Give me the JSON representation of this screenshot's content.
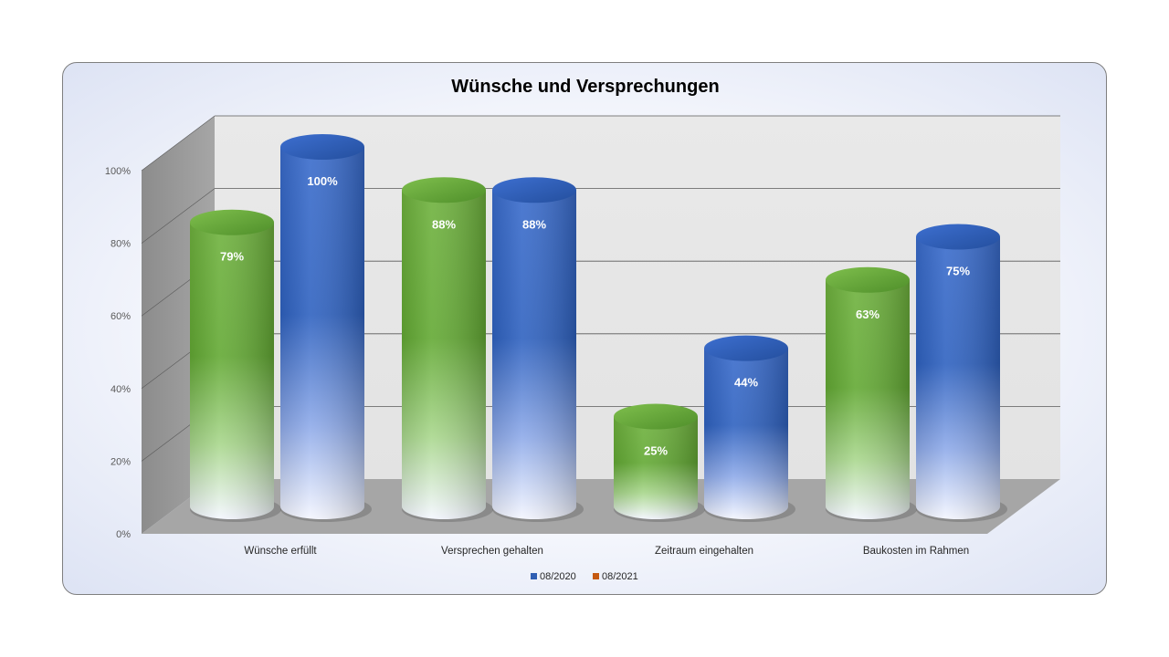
{
  "chart_data": {
    "type": "bar",
    "title": "Wünsche und Versprechungen",
    "categories": [
      "Wünsche erfüllt",
      "Versprechen gehalten",
      "Zeitraum eingehalten",
      "Baukosten im Rahmen"
    ],
    "series": [
      {
        "name": "08/2020",
        "values": [
          79,
          88,
          25,
          63
        ],
        "labels": [
          "79%",
          "88%",
          "25%",
          "63%"
        ],
        "color": "#6aaa3a"
      },
      {
        "name": "08/2021",
        "values": [
          100,
          88,
          44,
          75
        ],
        "labels": [
          "100%",
          "88%",
          "44%",
          "75%"
        ],
        "color": "#2f5fb3"
      }
    ],
    "y_ticks": [
      "0%",
      "20%",
      "40%",
      "60%",
      "80%",
      "100%"
    ],
    "ylim": [
      0,
      100
    ],
    "shape": "cylinder-3d",
    "grid": true,
    "legend": "bottom",
    "legend_swatch_colors": [
      "#2f5fb3",
      "#c55a11"
    ]
  }
}
